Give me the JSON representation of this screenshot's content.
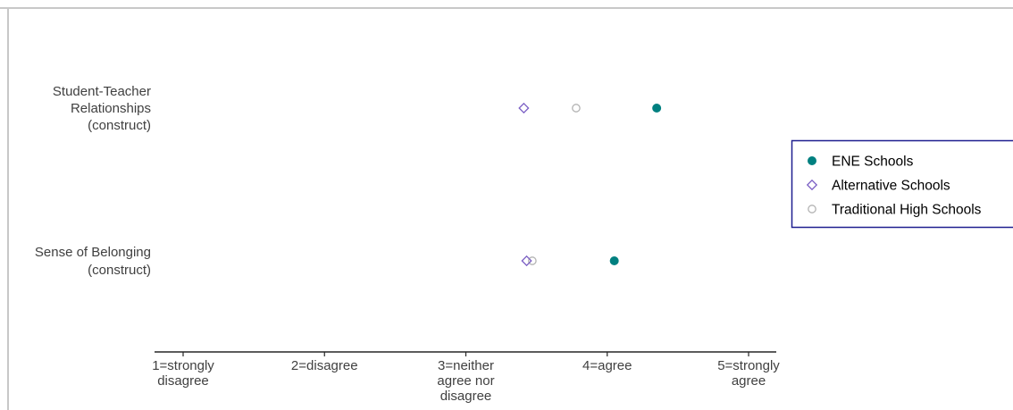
{
  "chart_data": {
    "type": "scatter",
    "orientation": "horizontal-dot",
    "categories": [
      [
        "Student-Teacher",
        "Relationships",
        "(construct)"
      ],
      [
        "Sense of Belonging",
        "(construct)"
      ]
    ],
    "xlim": [
      0.8,
      5.2
    ],
    "xticks": [
      1,
      2,
      3,
      4,
      5
    ],
    "xtick_labels": [
      [
        "1=strongly",
        "disagree"
      ],
      [
        "2=disagree"
      ],
      [
        "3=neither",
        "agree nor",
        "disagree"
      ],
      [
        "4=agree"
      ],
      [
        "5=strongly",
        "agree"
      ]
    ],
    "series": [
      {
        "name": "ENE Schools",
        "marker": "filled-circle",
        "color": "#008080",
        "values": [
          4.35,
          4.05
        ]
      },
      {
        "name": "Alternative Schools",
        "marker": "open-diamond",
        "color": "#7b5fc4",
        "values": [
          3.41,
          3.43
        ]
      },
      {
        "name": "Traditional High Schools",
        "marker": "open-circle",
        "color": "#b3b3b3",
        "values": [
          3.78,
          3.47
        ]
      }
    ],
    "legend_position": "right",
    "legend_border_color": "#1f1f8f",
    "grid": false
  }
}
